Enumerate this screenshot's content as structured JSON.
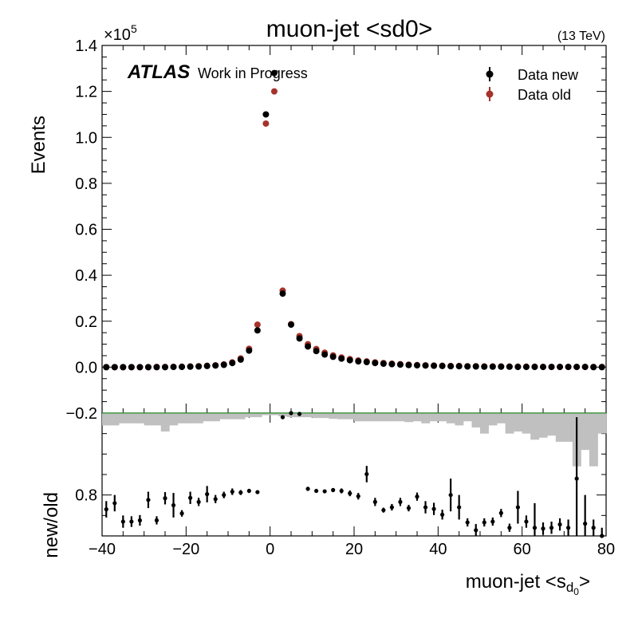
{
  "chart_data": [
    {
      "type": "scatter",
      "panel": "main",
      "title": "muon-jet <sd0>",
      "energy_label": "(13 TeV)",
      "experiment": "ATLAS",
      "status_label": "Work in Progress",
      "xlabel": "muon-jet <s",
      "xlabel_sub": "d",
      "xlabel_subsub": "0",
      "xlabel_close": ">",
      "ylabel": "Events",
      "y_multiplier": "×10",
      "y_multiplier_exp": "5",
      "xlim": [
        -40,
        80
      ],
      "ylim": [
        -0.2,
        1.4
      ],
      "y_units": 100000,
      "x_ticks": [
        -40,
        -20,
        0,
        20,
        40,
        60,
        80
      ],
      "x_tick_labels": [
        "−40",
        "−20",
        "0",
        "20",
        "40",
        "60",
        "80"
      ],
      "y_ticks": [
        -0.2,
        0.0,
        0.2,
        0.4,
        0.6,
        0.8,
        1.0,
        1.2,
        1.4
      ],
      "y_tick_labels": [
        "−0.2",
        "0.0",
        "0.2",
        "0.4",
        "0.6",
        "0.8",
        "1.0",
        "1.2",
        "1.4"
      ],
      "legend_position": "top-right",
      "x": [
        -39,
        -37,
        -35,
        -33,
        -31,
        -29,
        -27,
        -25,
        -23,
        -21,
        -19,
        -17,
        -15,
        -13,
        -11,
        -9,
        -7,
        -5,
        -3,
        -1,
        1,
        3,
        5,
        7,
        9,
        11,
        13,
        15,
        17,
        19,
        21,
        23,
        25,
        27,
        29,
        31,
        33,
        35,
        37,
        39,
        41,
        43,
        45,
        47,
        49,
        51,
        53,
        55,
        57,
        59,
        61,
        63,
        65,
        67,
        69,
        71,
        73,
        75,
        77,
        79
      ],
      "series": [
        {
          "name": "Data new",
          "color": "#000000",
          "values": [
            0.0,
            0.0,
            0.0,
            0.0,
            0.0,
            0.0,
            0.0,
            0.0,
            0.001,
            0.001,
            0.002,
            0.003,
            0.005,
            0.007,
            0.01,
            0.018,
            0.033,
            0.072,
            0.16,
            1.1,
            1.28,
            0.32,
            0.185,
            0.125,
            0.09,
            0.07,
            0.055,
            0.045,
            0.037,
            0.03,
            0.025,
            0.022,
            0.018,
            0.015,
            0.013,
            0.011,
            0.009,
            0.008,
            0.007,
            0.006,
            0.005,
            0.004,
            0.004,
            0.003,
            0.003,
            0.002,
            0.002,
            0.002,
            0.002,
            0.001,
            0.001,
            0.001,
            0.001,
            0.001,
            0.001,
            0.001,
            0.001,
            0.001,
            0.0,
            0.0
          ]
        },
        {
          "name": "Data old",
          "color": "#a6322c",
          "values": [
            0.0,
            0.0,
            0.0,
            0.0,
            0.0,
            0.0,
            0.001,
            0.001,
            0.001,
            0.002,
            0.003,
            0.004,
            0.006,
            0.008,
            0.012,
            0.021,
            0.038,
            0.08,
            0.185,
            1.06,
            1.2,
            0.333,
            0.187,
            0.135,
            0.1,
            0.079,
            0.063,
            0.051,
            0.042,
            0.035,
            0.029,
            0.025,
            0.021,
            0.018,
            0.015,
            0.013,
            0.011,
            0.009,
            0.008,
            0.007,
            0.006,
            0.005,
            0.005,
            0.004,
            0.004,
            0.003,
            0.003,
            0.003,
            0.002,
            0.002,
            0.002,
            0.002,
            0.001,
            0.001,
            0.001,
            0.001,
            0.001,
            0.001,
            0.001,
            0.001
          ]
        }
      ]
    },
    {
      "type": "scatter",
      "panel": "ratio",
      "ylabel": "new/old",
      "xlim": [
        -40,
        80
      ],
      "ylim": [
        0.7,
        1.0
      ],
      "y_ticks": [
        0.8
      ],
      "y_tick_labels": [
        "0.8"
      ],
      "reference_line": 1.0,
      "reference_color": "#3aa13a",
      "band_color": "#c0c0c0",
      "x": [
        -39,
        -37,
        -35,
        -33,
        -31,
        -29,
        -27,
        -25,
        -23,
        -21,
        -19,
        -17,
        -15,
        -13,
        -11,
        -9,
        -7,
        -5,
        -3,
        -1,
        1,
        3,
        5,
        7,
        9,
        11,
        13,
        15,
        17,
        19,
        21,
        23,
        25,
        27,
        29,
        31,
        33,
        35,
        37,
        39,
        41,
        43,
        45,
        47,
        49,
        51,
        53,
        55,
        57,
        59,
        61,
        63,
        65,
        67,
        69,
        71,
        73,
        75,
        77,
        79
      ],
      "series": [
        {
          "name": "ratio",
          "color": "#000000",
          "values": [
            0.765,
            0.78,
            0.735,
            0.735,
            0.738,
            0.788,
            0.738,
            0.792,
            0.775,
            0.755,
            0.793,
            0.783,
            0.802,
            0.79,
            0.8,
            0.808,
            0.806,
            0.81,
            0.807,
            1.005,
            1.01,
            0.99,
            1.0,
            0.998,
            0.815,
            0.81,
            0.809,
            0.812,
            0.81,
            0.804,
            0.797,
            0.851,
            0.783,
            0.763,
            0.77,
            0.783,
            0.768,
            0.796,
            0.77,
            0.766,
            0.752,
            0.8,
            0.77,
            0.733,
            0.714,
            0.733,
            0.735,
            0.756,
            0.72,
            0.77,
            0.735,
            0.72,
            0.718,
            0.72,
            0.728,
            0.72,
            0.84,
            0.73,
            0.72,
            0.7
          ],
          "errors": [
            0.02,
            0.02,
            0.015,
            0.013,
            0.013,
            0.02,
            0.01,
            0.015,
            0.03,
            0.008,
            0.015,
            0.01,
            0.02,
            0.01,
            0.008,
            0.008,
            0.006,
            0.005,
            0.003,
            0.002,
            0.002,
            0.003,
            0.003,
            0.005,
            0.005,
            0.004,
            0.004,
            0.005,
            0.006,
            0.007,
            0.008,
            0.02,
            0.01,
            0.006,
            0.008,
            0.01,
            0.008,
            0.01,
            0.015,
            0.015,
            0.012,
            0.04,
            0.03,
            0.01,
            0.015,
            0.01,
            0.01,
            0.01,
            0.01,
            0.04,
            0.015,
            0.06,
            0.015,
            0.015,
            0.015,
            0.02,
            0.15,
            0.07,
            0.02,
            0.02
          ]
        }
      ],
      "band_halfwidth": [
        0.03,
        0.03,
        0.025,
        0.025,
        0.025,
        0.03,
        0.03,
        0.045,
        0.03,
        0.025,
        0.025,
        0.025,
        0.02,
        0.02,
        0.015,
        0.015,
        0.015,
        0.01,
        0.01,
        0.005,
        0.005,
        0.008,
        0.01,
        0.01,
        0.01,
        0.012,
        0.012,
        0.014,
        0.015,
        0.015,
        0.02,
        0.02,
        0.02,
        0.02,
        0.02,
        0.02,
        0.022,
        0.02,
        0.025,
        0.02,
        0.02,
        0.025,
        0.03,
        0.02,
        0.035,
        0.05,
        0.03,
        0.025,
        0.05,
        0.045,
        0.05,
        0.065,
        0.06,
        0.055,
        0.07,
        0.07,
        0.13,
        0.09,
        0.13,
        0.05
      ]
    }
  ]
}
